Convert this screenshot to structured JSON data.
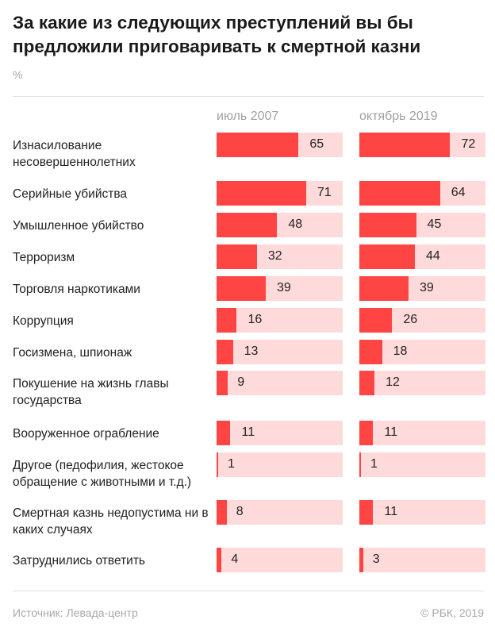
{
  "chart_data": {
    "type": "bar",
    "title": "За какие из следующих преступлений вы бы предложили приговаривать к смертной казни",
    "unit": "%",
    "xlim": [
      0,
      100
    ],
    "colors": {
      "fill": "#ff4444",
      "track": "#ffdadb"
    },
    "series": [
      {
        "name": "июль 2007",
        "values": [
          65,
          71,
          48,
          32,
          39,
          16,
          13,
          9,
          11,
          1,
          8,
          4
        ]
      },
      {
        "name": "октябрь 2019",
        "values": [
          72,
          64,
          45,
          44,
          39,
          26,
          18,
          12,
          11,
          1,
          11,
          3
        ]
      }
    ],
    "categories": [
      "Изнасилование несовершеннолетних",
      "Серийные убийства",
      "Умышленное убийство",
      "Терроризм",
      "Торговля наркотиками",
      "Коррупция",
      "Госизмена, шпионаж",
      "Покушение на жизнь главы государства",
      "Вооруженное ограбление",
      "Другое (педофилия, жестокое обращение с животными и т.д.)",
      "Смертная казнь недопустима ни в каких случаях",
      "Затруднились ответить"
    ]
  },
  "footer": {
    "source": "Источник: Левада-центр",
    "copyright": "© РБК, 2019"
  }
}
